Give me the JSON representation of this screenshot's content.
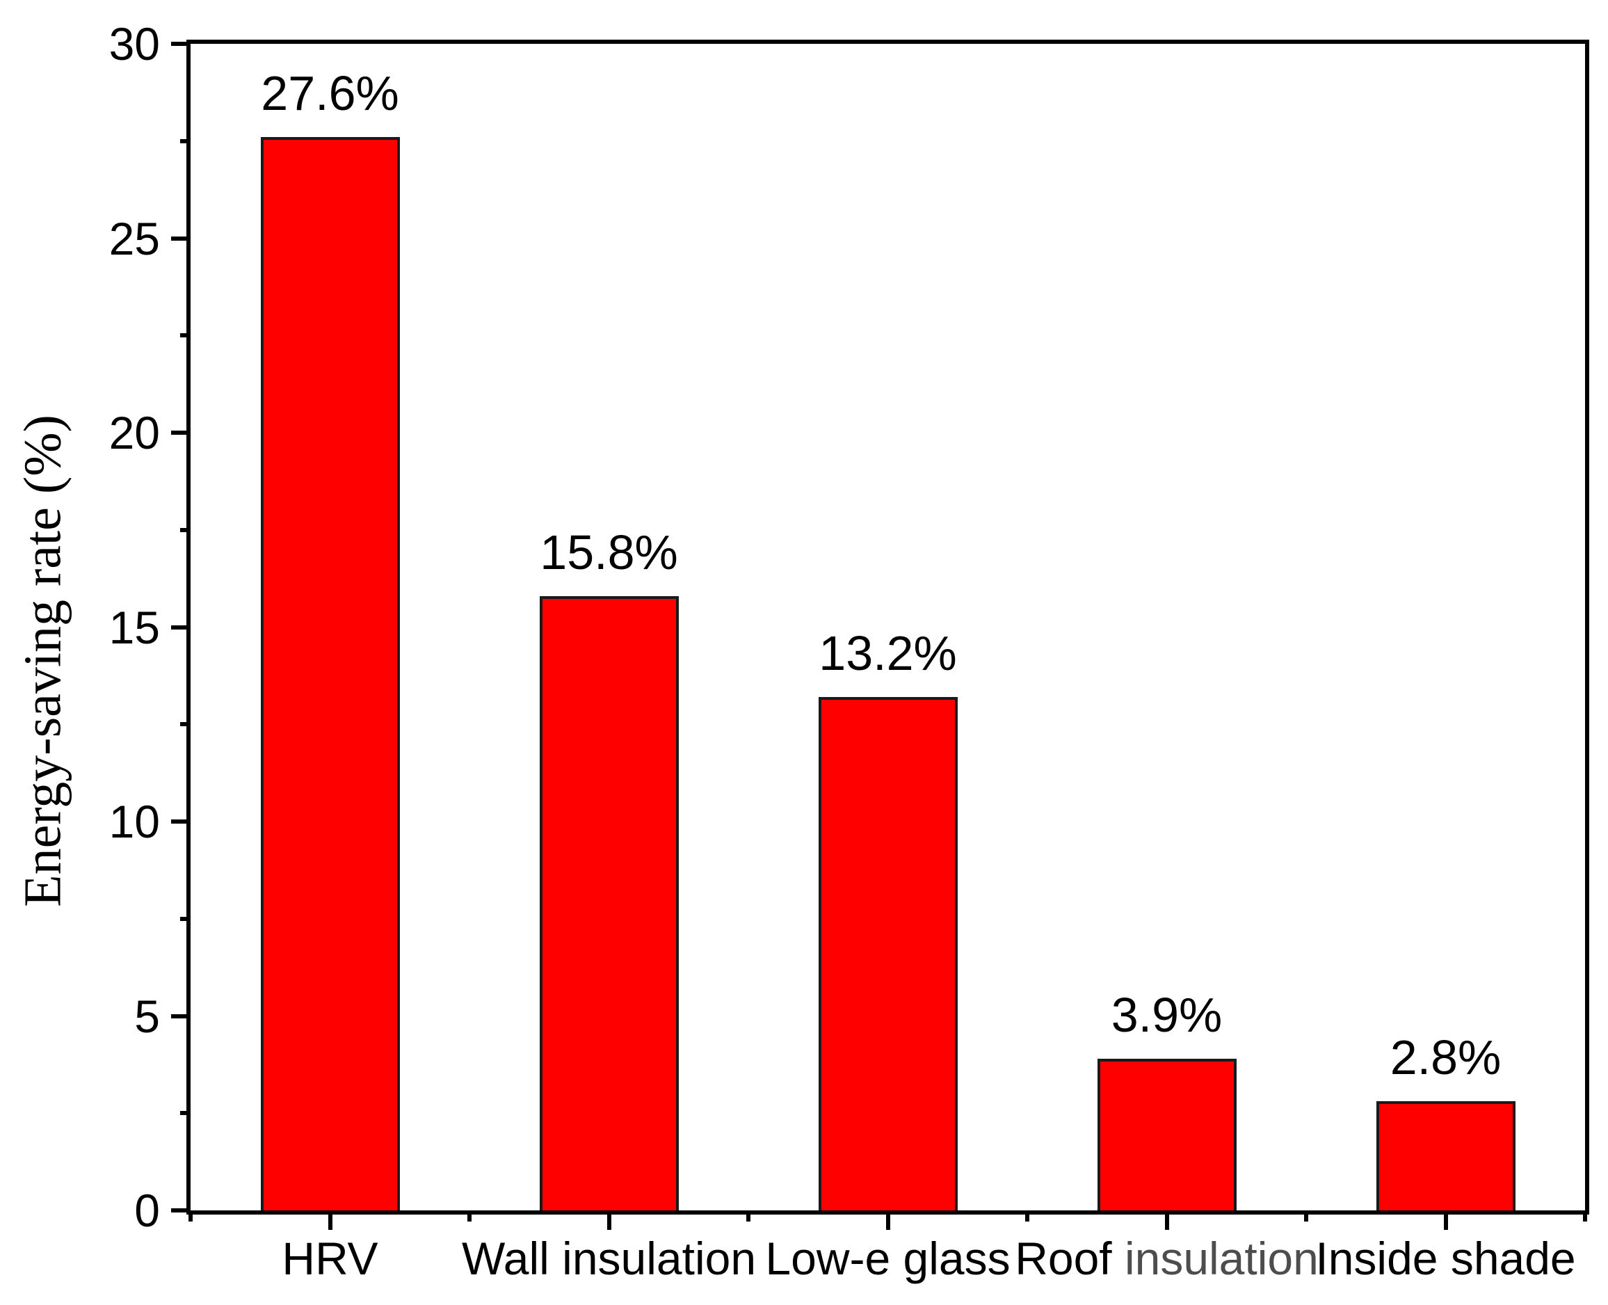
{
  "chart_data": {
    "type": "bar",
    "title": "",
    "xlabel": "",
    "ylabel": "Energy-saving rate (%)",
    "ylim": [
      0,
      30
    ],
    "y_ticks": [
      0,
      5,
      10,
      15,
      20,
      25,
      30
    ],
    "y_tick_labels": [
      "0",
      "5",
      "10",
      "15",
      "20",
      "25",
      "30"
    ],
    "y_minor_tick_values": [
      2.5,
      7.5,
      12.5,
      17.5,
      22.5,
      27.5
    ],
    "grid": "off",
    "legend": "none",
    "frame": "full-box",
    "categories": [
      {
        "label": "HRV",
        "parts": [
          {
            "text": "HRV",
            "color": "#000000"
          }
        ]
      },
      {
        "label": "Wall insulation",
        "parts": [
          {
            "text": "Wall insulation",
            "color": "#000000"
          }
        ]
      },
      {
        "label": "Low-e glass",
        "parts": [
          {
            "text": "Low-e glass",
            "color": "#000000"
          }
        ]
      },
      {
        "label": "Roof insulation",
        "parts": [
          {
            "text": "Roof ",
            "color": "#000000"
          },
          {
            "text": "insulation",
            "color": "#4d4d4d"
          }
        ]
      },
      {
        "label": "Inside shade",
        "parts": [
          {
            "text": "Inside shade",
            "color": "#000000"
          }
        ]
      }
    ],
    "values": [
      27.6,
      15.8,
      13.2,
      3.9,
      2.8
    ],
    "data_labels": [
      "27.6%",
      "15.8%",
      "13.2%",
      "3.9%",
      "2.8%"
    ],
    "colors": {
      "bar_fill": "#ff0000",
      "bar_border": "#1a1a1a",
      "axis": "#000000",
      "text": "#000000",
      "background": "#ffffff"
    }
  }
}
